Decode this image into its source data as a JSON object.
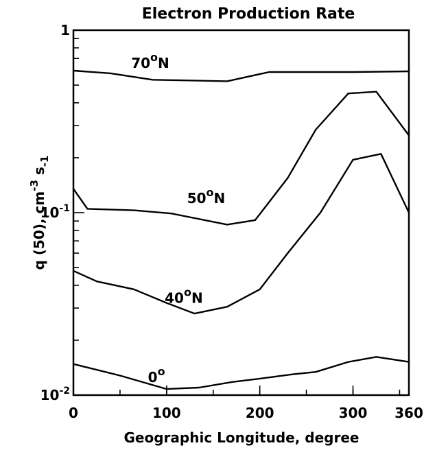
{
  "chart_data": {
    "type": "line",
    "title": "Electron Production Rate",
    "xlabel": "Geographic Longitude, degree",
    "ylabel": "q (50), cm-3 s-1",
    "ylabel_parts": {
      "prefix": "q (50), cm",
      "exp1": "-3",
      "mid": " s",
      "sub": "-1"
    },
    "xlim": [
      0,
      360
    ],
    "ylim": [
      0.01,
      1
    ],
    "yscale": "log",
    "x_ticks": [
      {
        "value": 0,
        "label": "0"
      },
      {
        "value": 100,
        "label": "100"
      },
      {
        "value": 200,
        "label": "200"
      },
      {
        "value": 300,
        "label": "300"
      },
      {
        "value": 360,
        "label": "360"
      }
    ],
    "y_ticks": [
      {
        "value": 0.01,
        "base": "10",
        "exp": "-2"
      },
      {
        "value": 0.1,
        "base": "10",
        "exp": "-1"
      },
      {
        "value": 1,
        "base": "1",
        "exp": ""
      }
    ],
    "grid": false,
    "series": [
      {
        "name": "70°N",
        "name_main": "70",
        "name_sup": "o",
        "name_suffix": "N",
        "label_at": [
          62,
          0.62
        ],
        "x": [
          0,
          40,
          85,
          125,
          165,
          210,
          260,
          300,
          360
        ],
        "y": [
          0.6,
          0.58,
          0.535,
          0.53,
          0.525,
          0.59,
          0.59,
          0.59,
          0.595
        ]
      },
      {
        "name": "50°N",
        "name_main": "50",
        "name_sup": "o",
        "name_suffix": "N",
        "label_at": [
          122,
          0.113
        ],
        "x": [
          0,
          15,
          65,
          105,
          165,
          195,
          230,
          260,
          295,
          325,
          360
        ],
        "y": [
          0.135,
          0.105,
          0.103,
          0.099,
          0.086,
          0.091,
          0.155,
          0.285,
          0.45,
          0.46,
          0.265
        ]
      },
      {
        "name": "40°N",
        "name_main": "40",
        "name_sup": "o",
        "name_suffix": "N",
        "label_at": [
          98,
          0.032
        ],
        "x": [
          0,
          25,
          65,
          100,
          130,
          165,
          200,
          230,
          265,
          300,
          330,
          360
        ],
        "y": [
          0.048,
          0.042,
          0.038,
          0.032,
          0.028,
          0.0305,
          0.038,
          0.06,
          0.1,
          0.195,
          0.21,
          0.1
        ]
      },
      {
        "name": "0°",
        "name_main": "0",
        "name_sup": "o",
        "name_suffix": "",
        "label_at": [
          80,
          0.0118
        ],
        "x": [
          0,
          50,
          100,
          135,
          170,
          205,
          235,
          260,
          295,
          325,
          360
        ],
        "y": [
          0.0148,
          0.0128,
          0.0108,
          0.011,
          0.0118,
          0.0124,
          0.013,
          0.0134,
          0.0152,
          0.0162,
          0.0152
        ]
      }
    ]
  }
}
